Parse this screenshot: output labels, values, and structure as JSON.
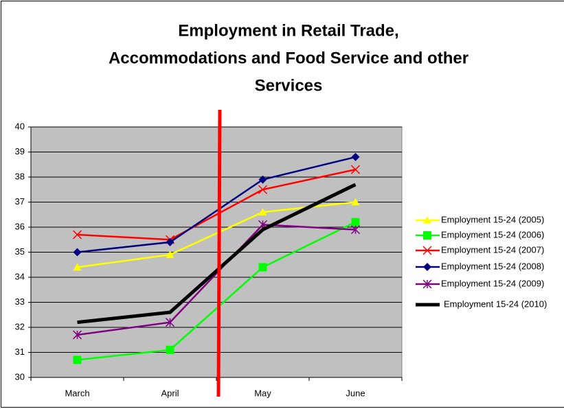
{
  "chart_data": {
    "type": "line",
    "title": [
      "Employment in Retail Trade,",
      "Accommodations and Food Service and other",
      "Services"
    ],
    "categories": [
      "March",
      "April",
      "May",
      "June"
    ],
    "series": [
      {
        "name": "Employment 15-24 (2005)",
        "color": "#ffff00",
        "marker": "triangle",
        "values": [
          34.4,
          34.9,
          36.6,
          37.0
        ]
      },
      {
        "name": "Employment 15-24 (2006)",
        "color": "#00ff00",
        "marker": "square",
        "values": [
          30.7,
          31.1,
          34.4,
          36.2
        ]
      },
      {
        "name": "Employment 15-24 (2007)",
        "color": "#ff0000",
        "marker": "x",
        "values": [
          35.7,
          35.5,
          37.5,
          38.3
        ]
      },
      {
        "name": "Employment 15-24 (2008)",
        "color": "#000080",
        "marker": "diamond",
        "values": [
          35.0,
          35.4,
          37.9,
          38.8
        ]
      },
      {
        "name": "Employment 15-24 (2009)",
        "color": "#800080",
        "marker": "star",
        "values": [
          31.7,
          32.2,
          36.1,
          35.9
        ]
      },
      {
        "name": "Employment 15-24 (2010)",
        "color": "#000000",
        "marker": "none",
        "values": [
          32.2,
          32.6,
          35.9,
          37.7
        ]
      }
    ],
    "ylim": [
      30,
      40
    ],
    "yticks": [
      30,
      31,
      32,
      33,
      34,
      35,
      36,
      37,
      38,
      39,
      40
    ],
    "grid": true,
    "legend": "right"
  }
}
